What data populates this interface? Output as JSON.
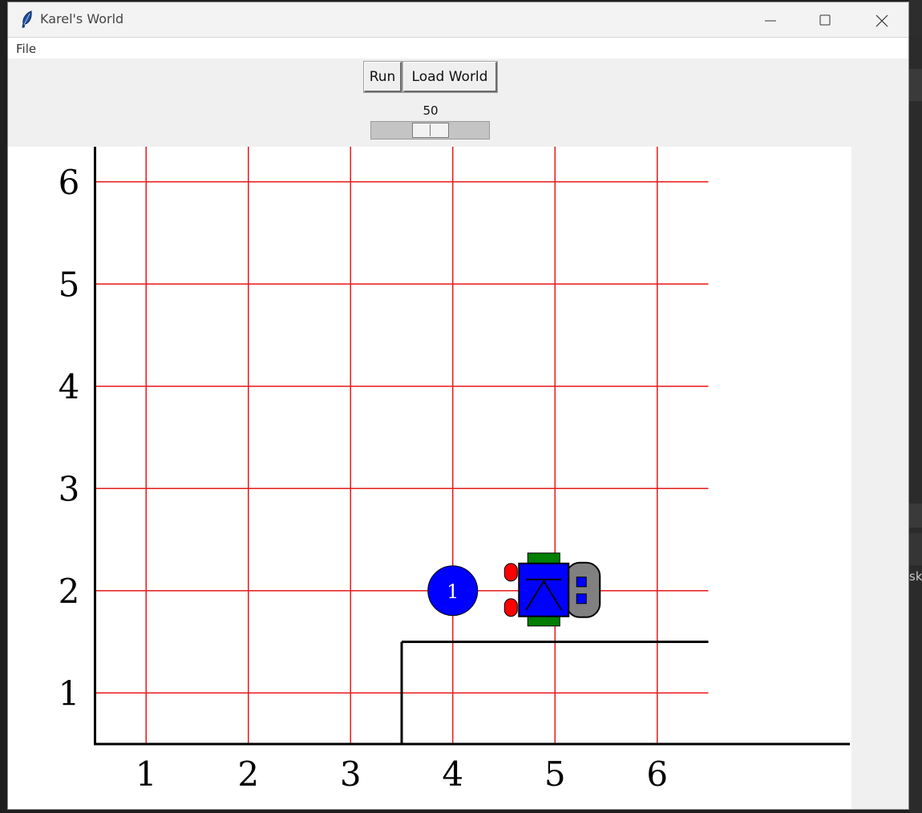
{
  "window": {
    "title": "Karel's World"
  },
  "menu": {
    "file": "File"
  },
  "toolbar": {
    "run_label": "Run",
    "load_world_label": "Load World",
    "speed": {
      "value": "50",
      "fraction": 0.5
    }
  },
  "world": {
    "avenues": 6,
    "streets": 6,
    "x_labels": [
      "1",
      "2",
      "3",
      "4",
      "5",
      "6"
    ],
    "y_labels": [
      "1",
      "2",
      "3",
      "4",
      "5",
      "6"
    ],
    "beepers": [
      {
        "avenue": 4,
        "street": 2,
        "count": "1"
      }
    ],
    "karel": {
      "avenue": 5,
      "street": 2,
      "facing": "east"
    },
    "walls": [
      {
        "type": "west",
        "avenue": 4,
        "street": 1
      },
      {
        "type": "north",
        "avenue": 4,
        "street": 1
      },
      {
        "type": "north",
        "avenue": 5,
        "street": 1
      },
      {
        "type": "north",
        "avenue": 6,
        "street": 1
      }
    ],
    "colors": {
      "grid": "#e81a1a",
      "beeper": "#0000ff",
      "karel_body": "#0000ff",
      "karel_treads": "#007f00",
      "karel_feet": "#ff0000",
      "karel_head": "#808080"
    }
  },
  "background": {
    "partial_text": "sk"
  }
}
